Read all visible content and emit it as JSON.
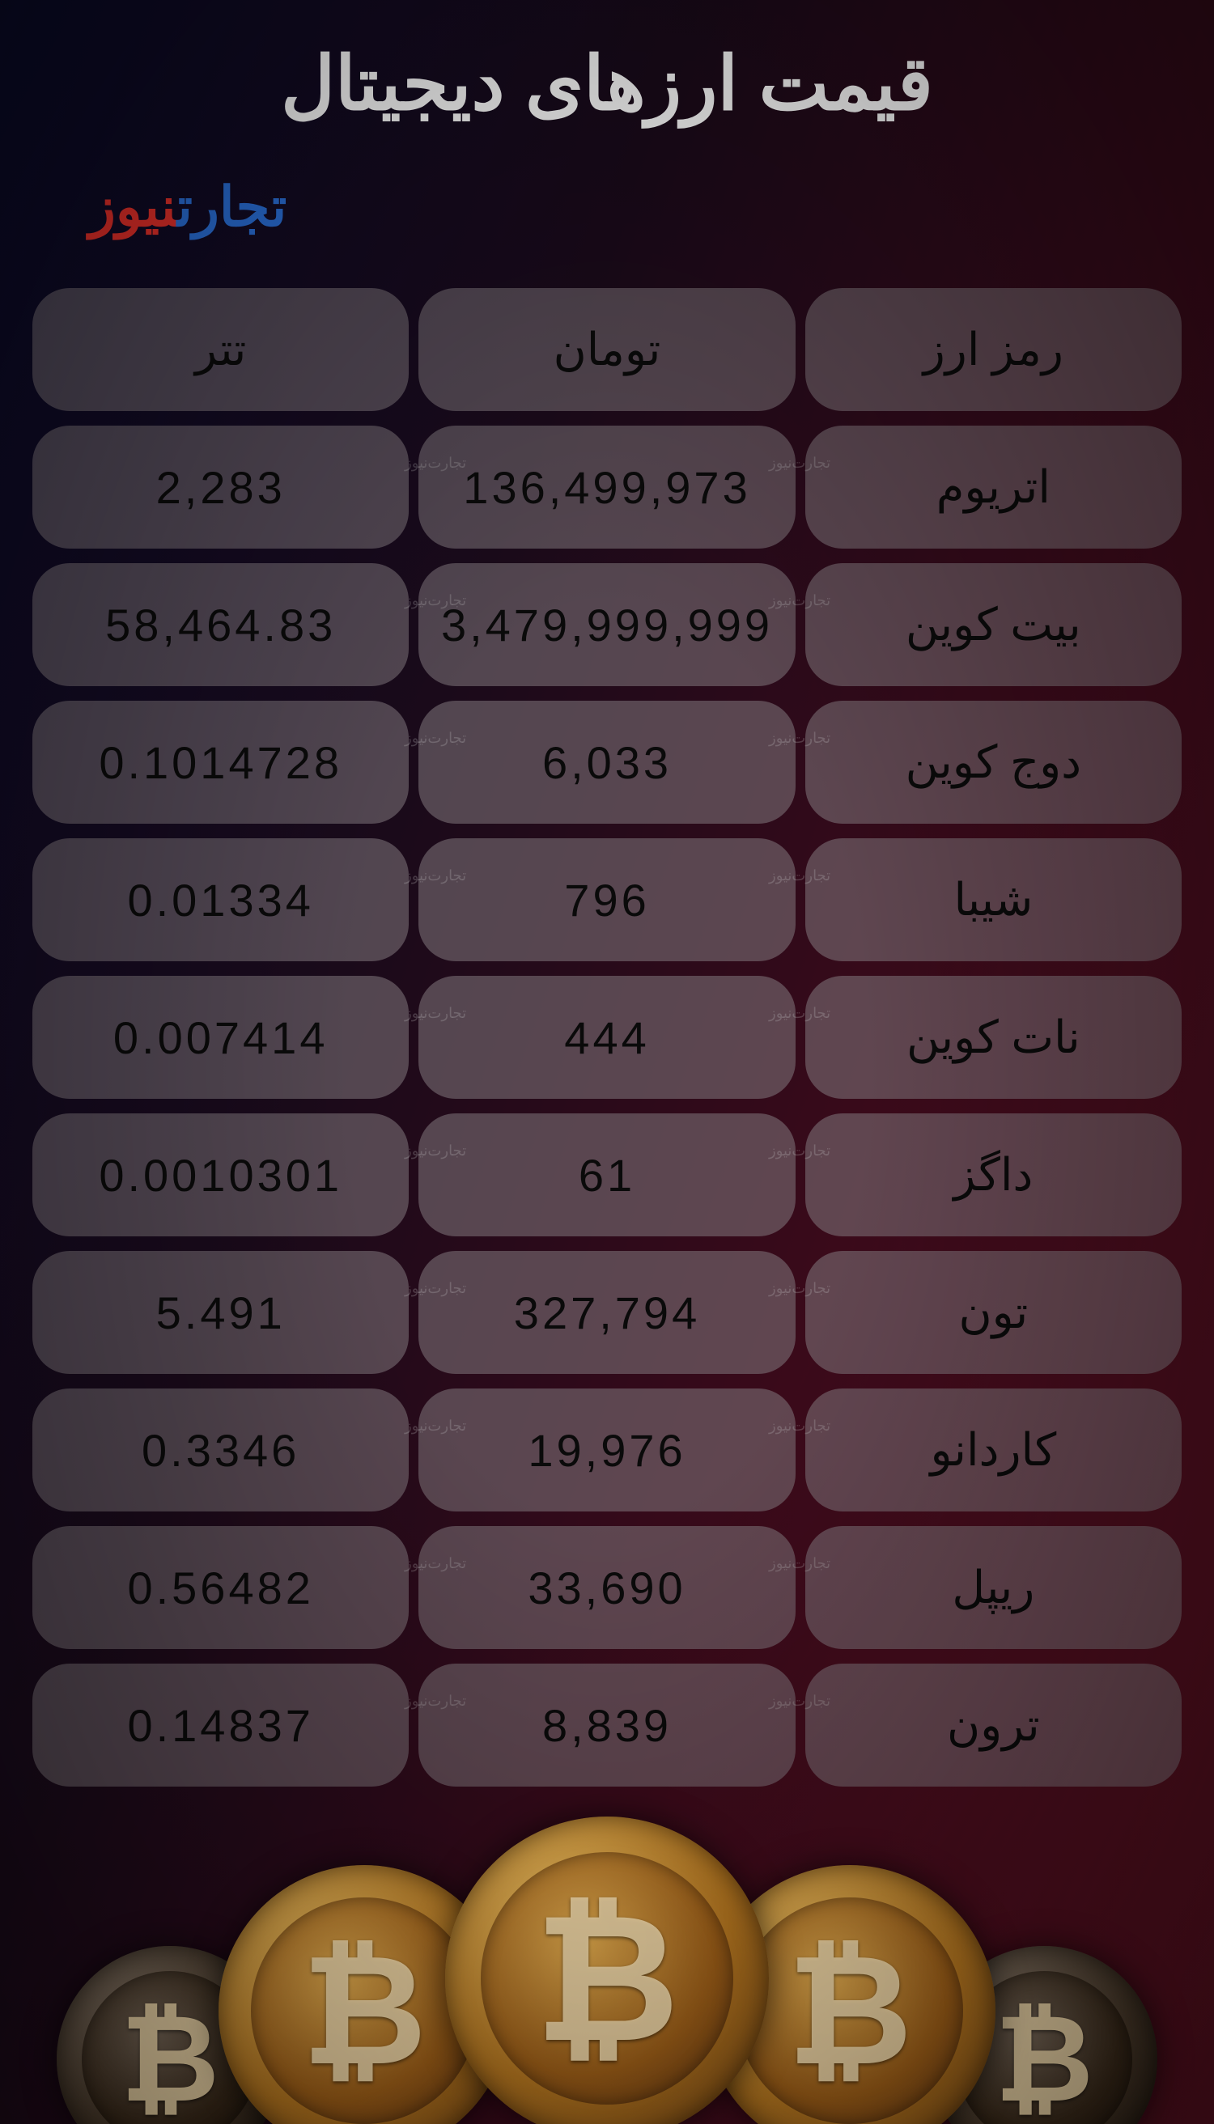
{
  "title": "قیمت ارزهای دیجیتال",
  "logo": {
    "part1": "تجارت",
    "part2": "نیوز"
  },
  "watermark": "تجارت‌نیوز",
  "table": {
    "type": "table",
    "background_cell_color": "rgba(130,120,125,0.55)",
    "cell_radius": 46,
    "text_color": "#0a0a0a",
    "header_fontsize": 56,
    "body_fontsize": 56,
    "columns": [
      "رمز ارز",
      "تومان",
      "تتر"
    ],
    "rows": [
      {
        "name": "اتریوم",
        "toman": "136,499,973",
        "tether": "2,283"
      },
      {
        "name": "بیت کوین",
        "toman": "3,479,999,999",
        "tether": "58,464.83"
      },
      {
        "name": "دوج کوین",
        "toman": "6,033",
        "tether": "0.1014728"
      },
      {
        "name": "شیبا",
        "toman": "796",
        "tether": "0.01334"
      },
      {
        "name": "نات کوین",
        "toman": "444",
        "tether": "0.007414"
      },
      {
        "name": "داگز",
        "toman": "61",
        "tether": "0.0010301"
      },
      {
        "name": "تون",
        "toman": "327,794",
        "tether": "5.491"
      },
      {
        "name": "کاردانو",
        "toman": "19,976",
        "tether": "0.3346"
      },
      {
        "name": "ریپل",
        "toman": "33,690",
        "tether": "0.56482"
      },
      {
        "name": "ترون",
        "toman": "8,839",
        "tether": "0.14837"
      }
    ]
  },
  "coins_decor": {
    "sizes": [
      280,
      360,
      400,
      360,
      280
    ],
    "dark": [
      true,
      false,
      false,
      false,
      true
    ],
    "symbol": "₿"
  },
  "colors": {
    "bg_gradient": [
      "#0a0a2a",
      "#1a0a1a",
      "#3a0a1a",
      "#5a1020"
    ],
    "title_color": "#ffffff",
    "logo_red": "#e8302a",
    "logo_blue": "#2a6fd8"
  }
}
